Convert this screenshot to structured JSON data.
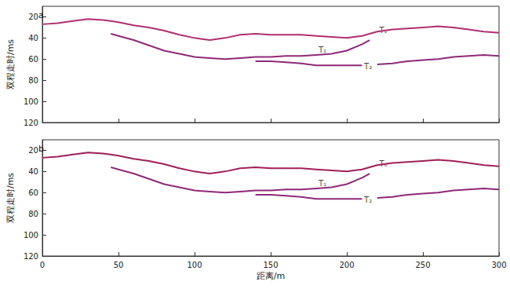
{
  "chart_data": [
    {
      "type": "line",
      "title": "a",
      "y_label": "双程走时/ms",
      "x": [
        0,
        10,
        20,
        30,
        40,
        45,
        50,
        60,
        70,
        80,
        90,
        100,
        110,
        120,
        130,
        140,
        150,
        160,
        170,
        180,
        190,
        200,
        210,
        215,
        220,
        230,
        240,
        250,
        260,
        270,
        280,
        290,
        300
      ],
      "series": [
        {
          "color": "#b0306f",
          "values": [
            27,
            26,
            24,
            22,
            23,
            24,
            25,
            28,
            30,
            33,
            37,
            40,
            42,
            40,
            37,
            36,
            37,
            37,
            37,
            38,
            39,
            40,
            38,
            36,
            34,
            32,
            31,
            30,
            29,
            30,
            32,
            34,
            35
          ]
        },
        {
          "color": "#8e2a78",
          "values": [
            null,
            null,
            null,
            null,
            null,
            36,
            38,
            42,
            47,
            52,
            55,
            58,
            59,
            60,
            59,
            58,
            58,
            57,
            57,
            56,
            55,
            52,
            46,
            42,
            null,
            null,
            null,
            null,
            null,
            null,
            null,
            null,
            null
          ]
        },
        {
          "color": "#8e2a78",
          "values": [
            null,
            null,
            null,
            null,
            null,
            null,
            null,
            null,
            null,
            null,
            null,
            null,
            null,
            null,
            null,
            62,
            62,
            63,
            64,
            66,
            66,
            66,
            66,
            null,
            65,
            64,
            62,
            61,
            60,
            58,
            57,
            56,
            57
          ]
        }
      ],
      "annotations": [
        {
          "text": "T₀",
          "x": 224,
          "y": 33
        },
        {
          "text": "T₁",
          "x": 184,
          "y": 51
        },
        {
          "text": "T₂",
          "x": 214,
          "y": 67
        }
      ],
      "xlim": [
        0,
        300
      ],
      "xticks": [
        0,
        50,
        100,
        150,
        200,
        250,
        300
      ],
      "ylim": [
        10,
        120
      ],
      "yticks": [
        20,
        40,
        60,
        80,
        100,
        120
      ],
      "grid": false,
      "tick_labels": "y"
    },
    {
      "type": "line",
      "title": "b",
      "x_label": "距离/m",
      "y_label": "双程走时/ms",
      "x": [
        0,
        10,
        20,
        30,
        40,
        45,
        50,
        60,
        70,
        80,
        90,
        100,
        110,
        120,
        130,
        140,
        150,
        160,
        170,
        180,
        190,
        200,
        210,
        215,
        220,
        230,
        240,
        250,
        260,
        270,
        280,
        290,
        300
      ],
      "series": [
        {
          "color": "#a0205a",
          "values": [
            27,
            26,
            24,
            22,
            23,
            24,
            25,
            28,
            30,
            33,
            37,
            40,
            42,
            40,
            37,
            36,
            37,
            37,
            37,
            38,
            39,
            40,
            38,
            36,
            34,
            32,
            31,
            30,
            29,
            30,
            32,
            34,
            35
          ]
        },
        {
          "color": "#8e2a78",
          "values": [
            null,
            null,
            null,
            null,
            null,
            36,
            38,
            42,
            47,
            52,
            55,
            58,
            59,
            60,
            59,
            58,
            58,
            57,
            57,
            56,
            55,
            52,
            46,
            42,
            null,
            null,
            null,
            null,
            null,
            null,
            null,
            null,
            null
          ]
        },
        {
          "color": "#8e2a78",
          "values": [
            null,
            null,
            null,
            null,
            null,
            null,
            null,
            null,
            null,
            null,
            null,
            null,
            null,
            null,
            null,
            62,
            62,
            63,
            64,
            66,
            66,
            66,
            66,
            null,
            65,
            64,
            62,
            61,
            60,
            58,
            57,
            56,
            57
          ]
        }
      ],
      "annotations": [
        {
          "text": "T₀",
          "x": 224,
          "y": 33
        },
        {
          "text": "T₁",
          "x": 184,
          "y": 51
        },
        {
          "text": "T₂",
          "x": 214,
          "y": 67
        }
      ],
      "xlim": [
        0,
        300
      ],
      "xticks": [
        0,
        50,
        100,
        150,
        200,
        250,
        300
      ],
      "ylim": [
        10,
        120
      ],
      "yticks": [
        20,
        40,
        60,
        80,
        100,
        120
      ],
      "grid": false
    }
  ]
}
